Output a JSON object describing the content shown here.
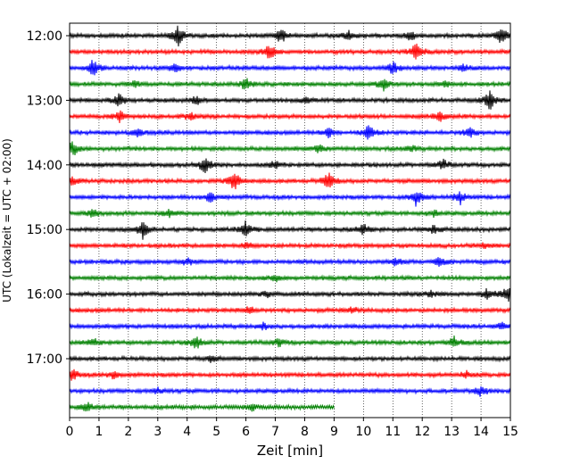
{
  "chart_data": {
    "type": "line",
    "subtype": "helicorder",
    "xlabel": "Zeit  [min]",
    "ylabel": "UTC (Lokalzeit = UTC + 02:00)",
    "xlim": [
      0,
      15
    ],
    "x_ticks": [
      "0",
      "1",
      "2",
      "3",
      "4",
      "5",
      "6",
      "7",
      "8",
      "9",
      "10",
      "11",
      "12",
      "13",
      "14",
      "15"
    ],
    "y_ticks": [
      {
        "label": "12:00",
        "trace": 0
      },
      {
        "label": "13:00",
        "trace": 4
      },
      {
        "label": "14:00",
        "trace": 8
      },
      {
        "label": "15:00",
        "trace": 12
      },
      {
        "label": "16:00",
        "trace": 16
      },
      {
        "label": "17:00",
        "trace": 20
      }
    ],
    "trace_minutes": 15,
    "vertical_grid": true,
    "colors": [
      "#000000",
      "#ff0000",
      "#0000ff",
      "#008000"
    ],
    "traces": [
      {
        "start": "12:00",
        "end_min": 15,
        "events": [
          [
            3.7,
            1.0
          ],
          [
            7.2,
            0.8
          ],
          [
            9.5,
            0.4
          ],
          [
            11.6,
            0.5
          ],
          [
            14.7,
            0.9
          ]
        ]
      },
      {
        "start": "12:15",
        "end_min": 15,
        "events": [
          [
            6.8,
            0.8
          ],
          [
            11.8,
            1.0
          ]
        ]
      },
      {
        "start": "12:30",
        "end_min": 15,
        "events": [
          [
            0.8,
            0.9
          ],
          [
            3.6,
            0.4
          ],
          [
            11.0,
            0.6
          ],
          [
            13.4,
            0.4
          ]
        ]
      },
      {
        "start": "12:45",
        "end_min": 15,
        "events": [
          [
            2.2,
            0.3
          ],
          [
            6.0,
            0.6
          ],
          [
            10.7,
            0.6
          ],
          [
            12.8,
            0.3
          ]
        ]
      },
      {
        "start": "13:00",
        "end_min": 15,
        "events": [
          [
            1.7,
            0.7
          ],
          [
            4.3,
            0.4
          ],
          [
            8.0,
            0.3
          ],
          [
            14.3,
            1.0
          ]
        ]
      },
      {
        "start": "13:15",
        "end_min": 15,
        "events": [
          [
            1.7,
            0.6
          ],
          [
            4.1,
            0.4
          ],
          [
            12.6,
            0.5
          ]
        ]
      },
      {
        "start": "13:30",
        "end_min": 15,
        "events": [
          [
            2.3,
            0.5
          ],
          [
            8.8,
            0.5
          ],
          [
            10.2,
            0.9
          ],
          [
            13.6,
            0.6
          ]
        ]
      },
      {
        "start": "13:45",
        "end_min": 15,
        "events": [
          [
            0.1,
            0.8
          ],
          [
            8.5,
            0.4
          ],
          [
            11.6,
            0.3
          ]
        ]
      },
      {
        "start": "14:00",
        "end_min": 15,
        "events": [
          [
            4.6,
            0.8
          ],
          [
            7.0,
            0.4
          ],
          [
            12.7,
            0.5
          ]
        ]
      },
      {
        "start": "14:15",
        "end_min": 15,
        "events": [
          [
            0.1,
            0.4
          ],
          [
            5.6,
            1.0
          ],
          [
            8.8,
            0.9
          ]
        ]
      },
      {
        "start": "14:30",
        "end_min": 15,
        "events": [
          [
            4.8,
            0.5
          ],
          [
            11.8,
            0.9
          ],
          [
            13.3,
            0.6
          ]
        ]
      },
      {
        "start": "14:45",
        "end_min": 15,
        "events": [
          [
            0.8,
            0.4
          ],
          [
            3.4,
            0.4
          ],
          [
            12.4,
            0.3
          ]
        ]
      },
      {
        "start": "15:00",
        "end_min": 15,
        "events": [
          [
            2.5,
            0.9
          ],
          [
            6.0,
            0.8
          ],
          [
            10.0,
            0.5
          ],
          [
            12.4,
            0.4
          ]
        ]
      },
      {
        "start": "15:15",
        "end_min": 15,
        "events": [
          [
            6.0,
            0.3
          ],
          [
            14.1,
            0.3
          ]
        ]
      },
      {
        "start": "15:30",
        "end_min": 15,
        "events": [
          [
            4.0,
            0.4
          ],
          [
            11.1,
            0.4
          ],
          [
            12.6,
            0.6
          ]
        ]
      },
      {
        "start": "15:45",
        "end_min": 15,
        "events": [
          [
            7.0,
            0.3
          ]
        ]
      },
      {
        "start": "16:00",
        "end_min": 15,
        "events": [
          [
            6.7,
            0.3
          ],
          [
            12.3,
            0.3
          ],
          [
            14.2,
            0.5
          ],
          [
            14.9,
            0.9
          ]
        ]
      },
      {
        "start": "16:15",
        "end_min": 15,
        "events": [
          [
            6.1,
            0.4
          ],
          [
            9.6,
            0.3
          ]
        ]
      },
      {
        "start": "16:30",
        "end_min": 15,
        "events": [
          [
            6.6,
            0.3
          ],
          [
            14.7,
            0.4
          ]
        ]
      },
      {
        "start": "16:45",
        "end_min": 15,
        "events": [
          [
            0.8,
            0.4
          ],
          [
            4.3,
            0.7
          ],
          [
            7.1,
            0.4
          ],
          [
            13.1,
            0.6
          ]
        ]
      },
      {
        "start": "17:00",
        "end_min": 15,
        "events": [
          [
            4.8,
            0.3
          ]
        ]
      },
      {
        "start": "17:15",
        "end_min": 15,
        "events": [
          [
            0.1,
            0.6
          ],
          [
            1.5,
            0.4
          ],
          [
            13.5,
            0.3
          ]
        ]
      },
      {
        "start": "17:30",
        "end_min": 15,
        "events": [
          [
            3.0,
            0.3
          ],
          [
            14.0,
            0.5
          ]
        ]
      },
      {
        "start": "17:45",
        "end_min": 9,
        "events": [
          [
            0.6,
            0.5
          ],
          [
            6.2,
            0.3
          ]
        ]
      }
    ]
  }
}
